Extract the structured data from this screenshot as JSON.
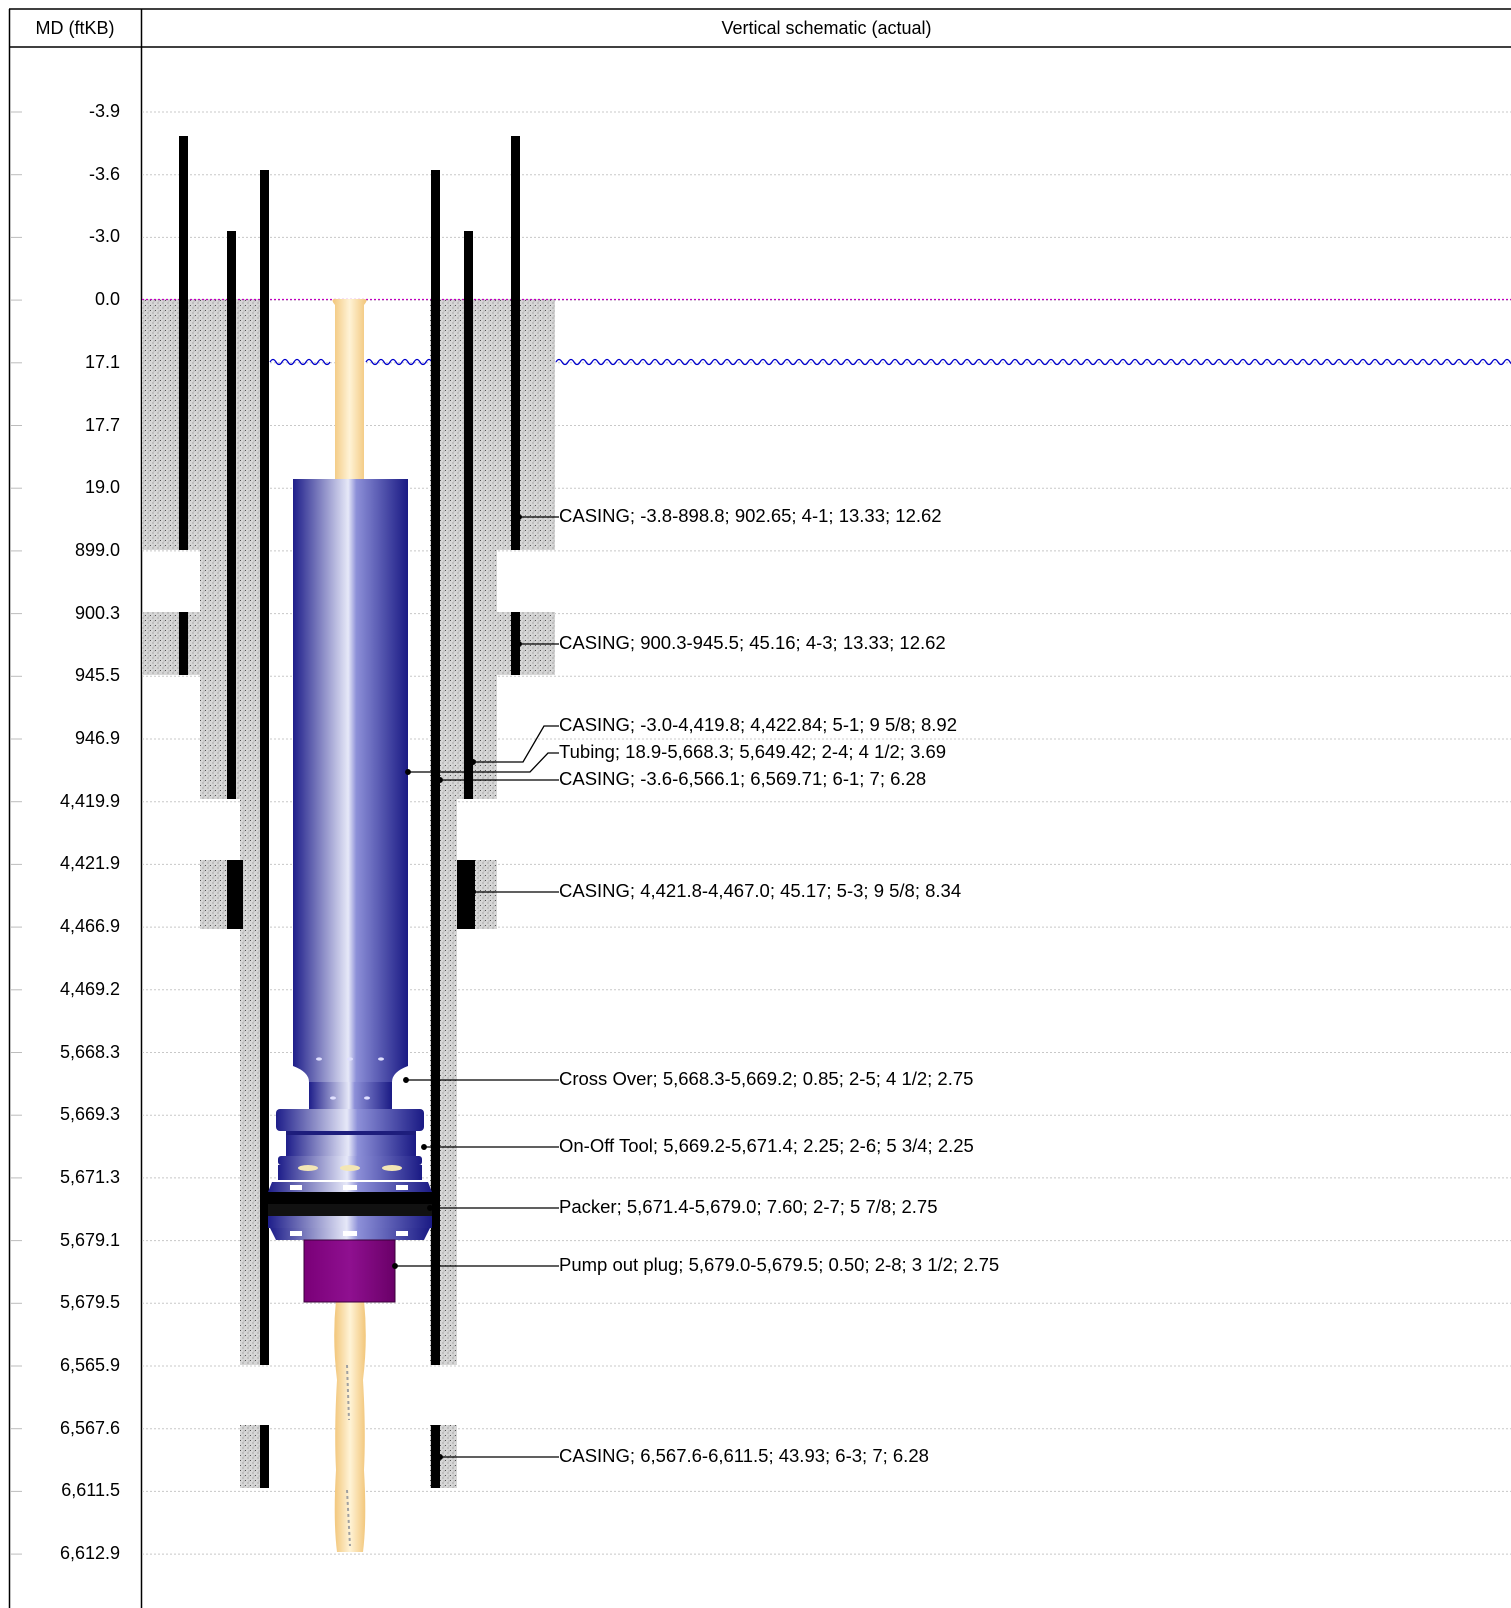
{
  "header": {
    "md_label": "MD (ftKB)",
    "schematic_label": "Vertical schematic (actual)"
  },
  "depths": [
    "-3.9",
    "-3.6",
    "-3.0",
    "0.0",
    "17.1",
    "17.7",
    "19.0",
    "899.0",
    "900.3",
    "945.5",
    "946.9",
    "4,419.9",
    "4,421.9",
    "4,466.9",
    "4,469.2",
    "5,668.3",
    "5,669.3",
    "5,671.3",
    "5,679.1",
    "5,679.5",
    "6,565.9",
    "6,567.6",
    "6,611.5",
    "6,612.9"
  ],
  "components": [
    {
      "kind": "casing",
      "label": "CASING; -3.8-898.8; 902.65; 4-1; 13.33; 12.62"
    },
    {
      "kind": "casing",
      "label": "CASING; 900.3-945.5; 45.16; 4-3; 13.33; 12.62"
    },
    {
      "kind": "casing",
      "label": "CASING; -3.0-4,419.8; 4,422.84; 5-1; 9 5/8; 8.92"
    },
    {
      "kind": "tubing",
      "label": "Tubing; 18.9-5,668.3; 5,649.42; 2-4; 4 1/2; 3.69"
    },
    {
      "kind": "casing",
      "label": "CASING; -3.6-6,566.1; 6,569.71; 6-1; 7; 6.28"
    },
    {
      "kind": "casing",
      "label": "CASING; 4,421.8-4,467.0; 45.17; 5-3; 9 5/8; 8.34"
    },
    {
      "kind": "crossover",
      "label": "Cross Over; 5,668.3-5,669.2; 0.85; 2-5; 4 1/2; 2.75"
    },
    {
      "kind": "onoff-tool",
      "label": "On-Off Tool; 5,669.2-5,671.4; 2.25; 2-6; 5 3/4; 2.25"
    },
    {
      "kind": "packer",
      "label": "Packer; 5,671.4-5,679.0; 7.60; 2-7; 5 7/8; 2.75"
    },
    {
      "kind": "pump-out-plug",
      "label": "Pump out plug; 5,679.0-5,679.5; 0.50; 2-8; 3 1/2; 2.75"
    },
    {
      "kind": "casing",
      "label": "CASING; 6,567.6-6,611.5; 43.93; 6-3; 7; 6.28"
    }
  ],
  "colors": {
    "cement": "#d4d4d4",
    "casing": "#000000",
    "tubing_body": "#2b2b9c",
    "tubing_highlight": "#d8daf2",
    "production_string": "#f7d496",
    "pump_out_plug": "#800080",
    "ground_line": "#c000c0",
    "water_line": "#0000cc",
    "grid": "#bdbdbd"
  }
}
